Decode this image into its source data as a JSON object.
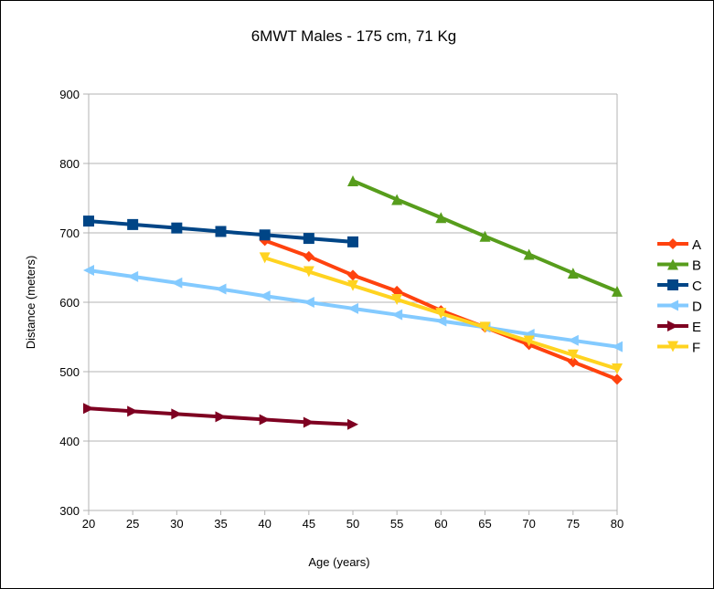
{
  "chart_data": {
    "type": "line",
    "title": "6MWT Males - 175 cm, 71 Kg",
    "xlabel": "Age (years)",
    "ylabel": "Distance (meters)",
    "xlim": [
      20,
      80
    ],
    "ylim": [
      300,
      900
    ],
    "xticks": [
      20,
      25,
      30,
      35,
      40,
      45,
      50,
      55,
      60,
      65,
      70,
      75,
      80
    ],
    "yticks": [
      300,
      400,
      500,
      600,
      700,
      800,
      900
    ],
    "grid": true,
    "legend": "right",
    "series": [
      {
        "name": "A",
        "color": "#ff420e",
        "marker": "diamond",
        "x": [
          40,
          45,
          50,
          55,
          60,
          65,
          70,
          75,
          80
        ],
        "values": [
          689,
          666,
          639,
          616,
          588,
          564,
          539,
          514,
          489
        ]
      },
      {
        "name": "B",
        "color": "#579d1c",
        "marker": "triangle-up",
        "x": [
          50,
          55,
          60,
          65,
          70,
          75,
          80
        ],
        "values": [
          775,
          748,
          722,
          695,
          669,
          642,
          616
        ]
      },
      {
        "name": "C",
        "color": "#004586",
        "marker": "square",
        "x": [
          20,
          25,
          30,
          35,
          40,
          45,
          50
        ],
        "values": [
          717,
          712,
          707,
          702,
          697,
          692,
          687
        ]
      },
      {
        "name": "D",
        "color": "#83caff",
        "marker": "triangle-left",
        "x": [
          20,
          25,
          30,
          35,
          40,
          45,
          50,
          55,
          60,
          65,
          70,
          75,
          80
        ],
        "values": [
          646,
          637,
          628,
          619,
          609,
          600,
          591,
          582,
          573,
          564,
          554,
          545,
          536
        ]
      },
      {
        "name": "E",
        "color": "#7e0021",
        "marker": "triangle-right",
        "x": [
          20,
          25,
          30,
          35,
          40,
          45,
          50
        ],
        "values": [
          447,
          443,
          439,
          435,
          431,
          427,
          424
        ]
      },
      {
        "name": "F",
        "color": "#ffd320",
        "marker": "triangle-down",
        "x": [
          40,
          45,
          50,
          55,
          60,
          65,
          70,
          75,
          80
        ],
        "values": [
          664,
          644,
          624,
          604,
          584,
          564,
          544,
          524,
          504
        ]
      }
    ]
  }
}
